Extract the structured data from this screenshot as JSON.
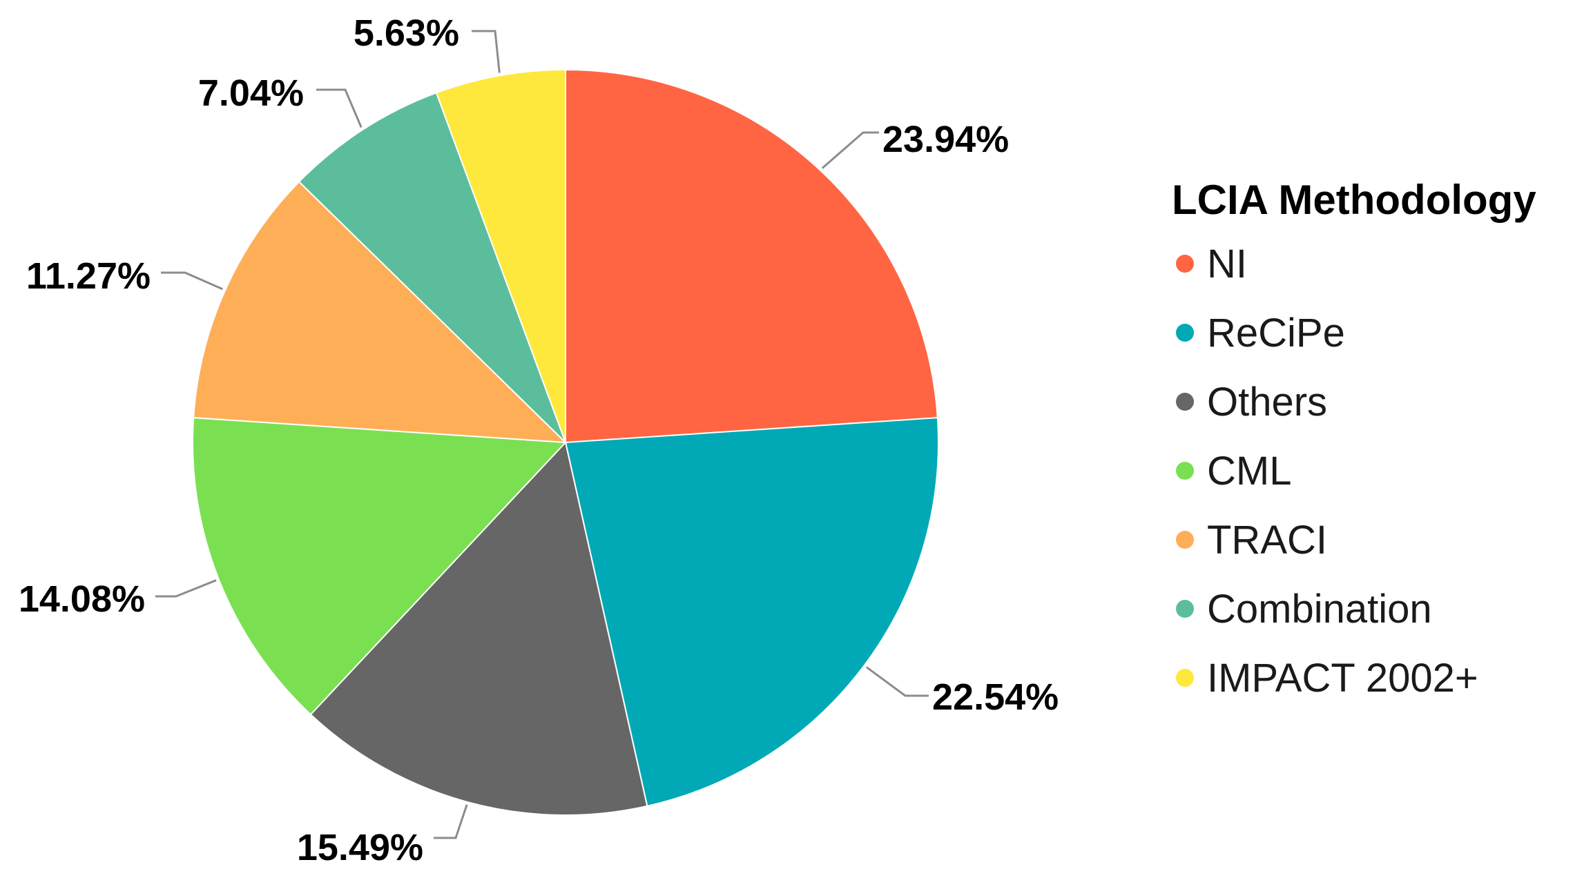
{
  "chart_data": {
    "type": "pie",
    "legend_title": "LCIA Methodology",
    "legend_position": "right",
    "start_angle_deg": 0,
    "direction": "clockwise",
    "slices": [
      {
        "label": "NI",
        "value": 23.94,
        "display": "23.94%",
        "color": "#FF6542"
      },
      {
        "label": "ReCiPe",
        "value": 22.54,
        "display": "22.54%",
        "color": "#00A9B5"
      },
      {
        "label": "Others",
        "value": 15.49,
        "display": "15.49%",
        "color": "#666666"
      },
      {
        "label": "CML",
        "value": 14.08,
        "display": "14.08%",
        "color": "#7AE052"
      },
      {
        "label": "TRACI",
        "value": 11.27,
        "display": "11.27%",
        "color": "#FFAE58"
      },
      {
        "label": "Combination",
        "value": 7.04,
        "display": "7.04%",
        "color": "#5CBD9C"
      },
      {
        "label": "IMPACT 2002+",
        "value": 5.63,
        "display": "5.63%",
        "color": "#FFE83C"
      }
    ]
  }
}
